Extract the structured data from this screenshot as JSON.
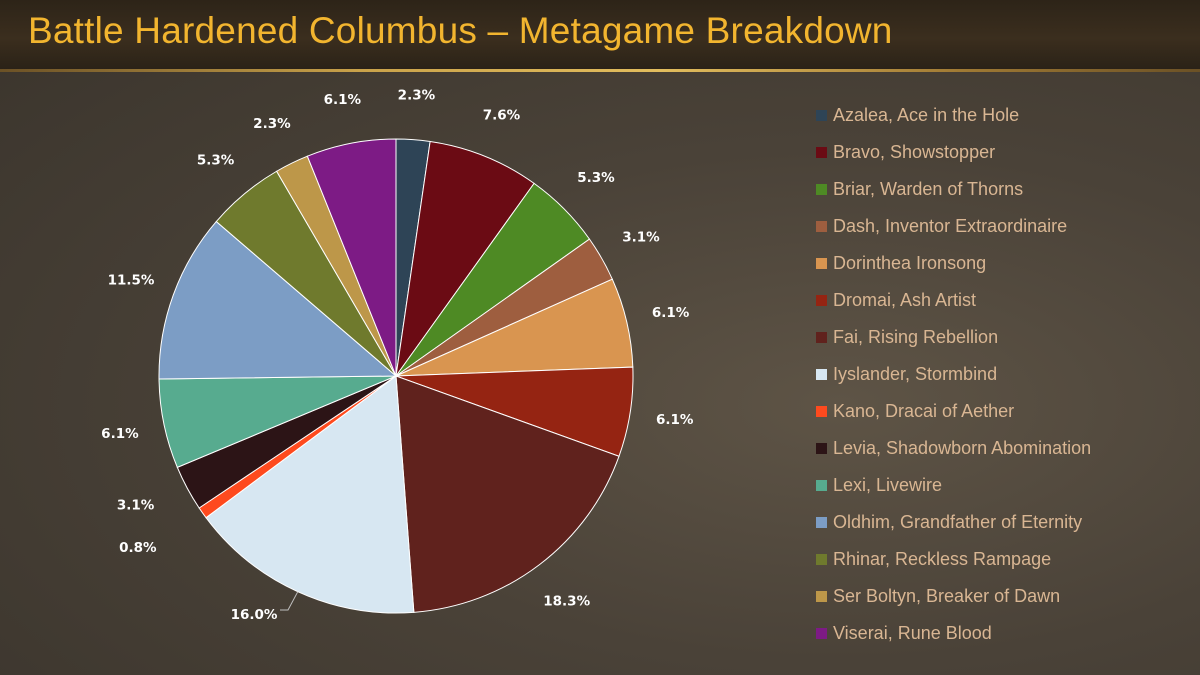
{
  "slide": {
    "title": "Battle Hardened Columbus – Metagame Breakdown"
  },
  "chart_data": {
    "type": "pie",
    "title": "",
    "legend_position": "right",
    "start_angle_deg": 0,
    "direction": "clockwise",
    "slices": [
      {
        "label": "Azalea, Ace in the Hole",
        "value": 2.3,
        "display": "2.3%",
        "color": "#2e4456"
      },
      {
        "label": "Bravo, Showstopper",
        "value": 7.6,
        "display": "7.6%",
        "color": "#6b0b14"
      },
      {
        "label": "Briar, Warden of Thorns",
        "value": 5.3,
        "display": "5.3%",
        "color": "#4e8a24"
      },
      {
        "label": "Dash, Inventor Extraordinaire",
        "value": 3.1,
        "display": "3.1%",
        "color": "#9e5e3f"
      },
      {
        "label": "Dorinthea Ironsong",
        "value": 6.1,
        "display": "6.1%",
        "color": "#d99550"
      },
      {
        "label": "Dromai, Ash Artist",
        "value": 6.1,
        "display": "6.1%",
        "color": "#952412"
      },
      {
        "label": "Fai, Rising Rebellion",
        "value": 18.3,
        "display": "18.3%",
        "color": "#60221d"
      },
      {
        "label": "Iyslander, Stormbind",
        "value": 16.0,
        "display": "16.0%",
        "color": "#d7e7f2"
      },
      {
        "label": "Kano, Dracai of Aether",
        "value": 0.8,
        "display": "0.8%",
        "color": "#fe4a1e"
      },
      {
        "label": "Levia, Shadowborn Abomination",
        "value": 3.1,
        "display": "3.1%",
        "color": "#2c1416"
      },
      {
        "label": "Lexi, Livewire",
        "value": 6.1,
        "display": "6.1%",
        "color": "#57ab8f"
      },
      {
        "label": "Oldhim, Grandfather of Eternity",
        "value": 11.5,
        "display": "11.5%",
        "color": "#7c9dc5"
      },
      {
        "label": "Rhinar, Reckless Rampage",
        "value": 5.3,
        "display": "5.3%",
        "color": "#6f7a2d"
      },
      {
        "label": "Ser Boltyn, Breaker of Dawn",
        "value": 2.3,
        "display": "2.3%",
        "color": "#bd9749"
      },
      {
        "label": "Viserai, Rune Blood",
        "value": 6.1,
        "display": "6.1%",
        "color": "#7d1b85"
      }
    ]
  }
}
